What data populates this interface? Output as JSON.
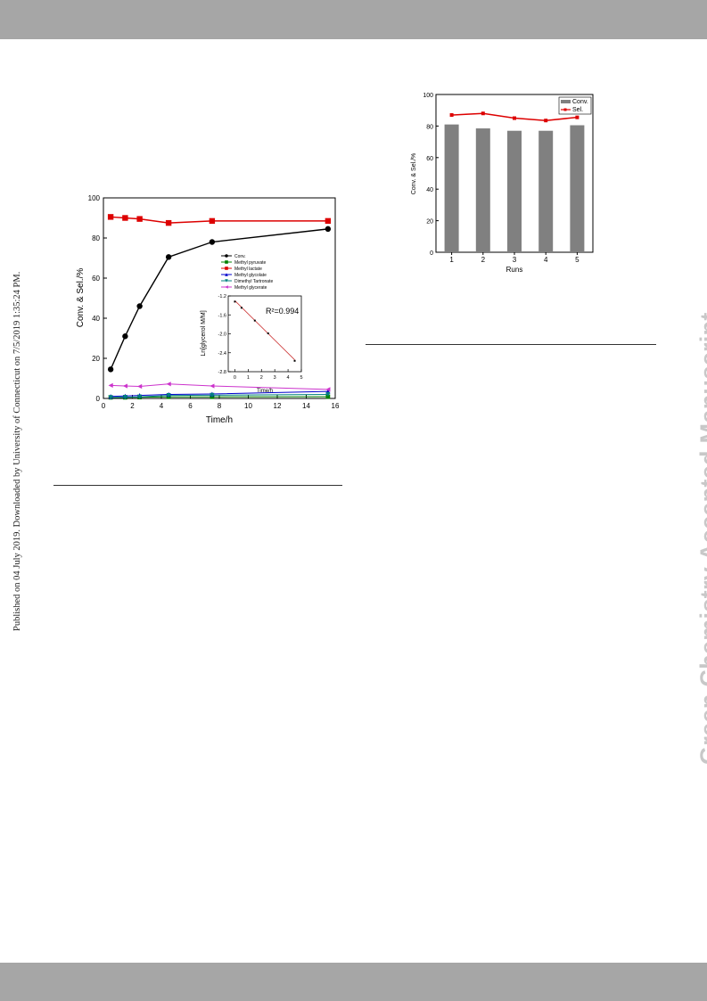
{
  "page": {
    "side_notice": "Published on 04 July 2019. Downloaded by University of Connecticut on 7/5/2019 1:35:24 PM.",
    "watermark": "Green Chemistry Accepted Manuscript"
  },
  "colors": {
    "band": "#a6a6a6",
    "conv": "#000000",
    "methyl_pyruvate": "#008000",
    "methyl_lactate": "#dd0000",
    "methyl_glycolate": "#0000cc",
    "dimethyl_tartronate": "#008080",
    "methyl_glycerate": "#cc33cc",
    "bar": "#808080",
    "fit_line": "#cc3333"
  },
  "chart_data": [
    {
      "type": "line",
      "xlabel": "Time/h",
      "ylabel": "Conv. & Sel./%",
      "xlim": [
        0,
        16
      ],
      "ylim": [
        0,
        100
      ],
      "xticks": [
        "0",
        "2",
        "4",
        "6",
        "8",
        "10",
        "12",
        "14",
        "16"
      ],
      "yticks": [
        "0",
        "20",
        "40",
        "60",
        "80",
        "100"
      ],
      "legend_position": "right",
      "x": [
        0.5,
        1.5,
        2.5,
        4.5,
        7.5,
        15.5
      ],
      "series": [
        {
          "name": "Conv.",
          "marker": "circle",
          "values": [
            14.5,
            31,
            46,
            70.5,
            78,
            84.5
          ]
        },
        {
          "name": "Methyl pyruvate",
          "marker": "square",
          "values": [
            0.5,
            0.5,
            0.6,
            0.8,
            0.8,
            0.9
          ]
        },
        {
          "name": "Methyl lactate",
          "marker": "square",
          "values": [
            90.5,
            90,
            89.5,
            87.5,
            88.5,
            88.5
          ]
        },
        {
          "name": "Methyl glycolate",
          "marker": "triangle-up",
          "values": [
            1,
            1.2,
            1.5,
            2,
            2.2,
            3.5
          ]
        },
        {
          "name": "Dimethyl Tartronate",
          "marker": "triangle-down",
          "values": [
            0.5,
            0.6,
            0.8,
            1.5,
            1.6,
            2
          ]
        },
        {
          "name": "Methyl glycerate",
          "marker": "triangle-left",
          "values": [
            6.5,
            6.2,
            6,
            7.2,
            6.2,
            4.5
          ]
        }
      ],
      "inset": {
        "type": "scatter",
        "xlabel": "Time/h",
        "ylabel": "Ln[glycerol M/M]",
        "xlim": [
          -0.5,
          5
        ],
        "ylim": [
          -2.8,
          -1.2
        ],
        "xticks": [
          "0",
          "1",
          "2",
          "3",
          "4",
          "5"
        ],
        "yticks": [
          "-1.2",
          "-1.6",
          "-2.0",
          "-2.4",
          "-2.8"
        ],
        "annotation": "R²=0.994",
        "x": [
          0,
          0.5,
          1.5,
          2.5,
          4.5
        ],
        "y": [
          -1.32,
          -1.45,
          -1.72,
          -1.99,
          -2.57
        ],
        "fit": {
          "x": [
            0,
            4.5
          ],
          "y": [
            -1.3,
            -2.55
          ]
        }
      }
    },
    {
      "type": "bar",
      "xlabel": "Runs",
      "ylabel": "Conv. & Sel./%",
      "categories": [
        "1",
        "2",
        "3",
        "4",
        "5"
      ],
      "ylim": [
        0,
        100
      ],
      "yticks": [
        "0",
        "20",
        "40",
        "60",
        "80",
        "100"
      ],
      "legend_position": "top-right",
      "series": [
        {
          "name": "Conv.",
          "type": "bar",
          "values": [
            81,
            78.5,
            77,
            77,
            80.5
          ]
        },
        {
          "name": "Sel.",
          "type": "line",
          "values": [
            87,
            88,
            85,
            83.5,
            85.5
          ]
        }
      ]
    }
  ]
}
